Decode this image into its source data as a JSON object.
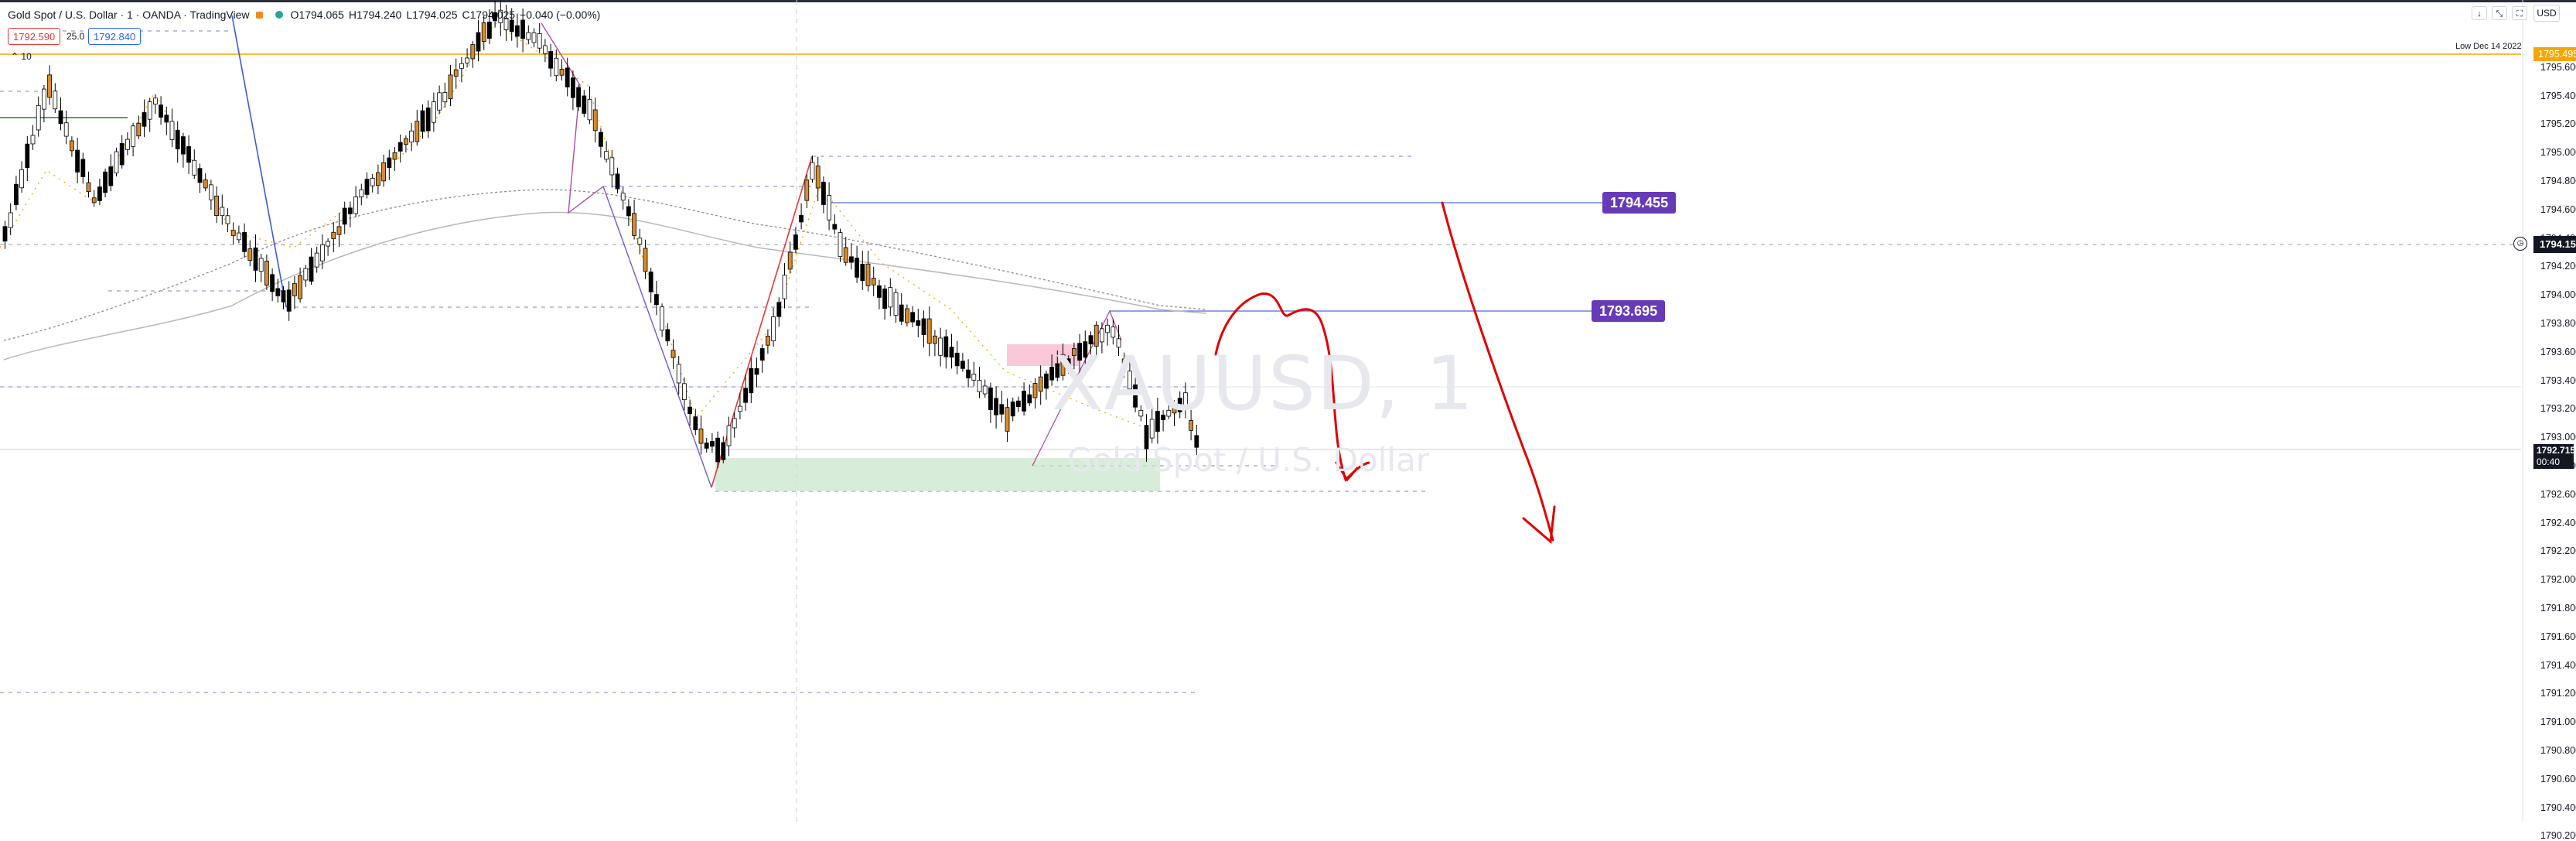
{
  "legend": {
    "symbol": "Gold Spot / U.S. Dollar · 1 · OANDA · TradingView",
    "open": "O1794.065",
    "high": "H1794.240",
    "low": "L1794.025",
    "close": "C1794.025",
    "change": "−0.040 (−0.00%)",
    "market_status_color": "#26a69a",
    "sell_price": "1792.590",
    "spread": "25.0",
    "buy_price": "1792.840",
    "volume_label": "10"
  },
  "axis": {
    "currency_button": "USD",
    "ticks": [
      "1795.600",
      "1795.400",
      "1795.200",
      "1795.000",
      "1794.800",
      "1794.600",
      "1794.400",
      "1794.200",
      "1794.000",
      "1793.800",
      "1793.600",
      "1793.400",
      "1793.200",
      "1793.000",
      "1792.800",
      "1792.600",
      "1792.400",
      "1792.200",
      "1792.000",
      "1791.800",
      "1791.600",
      "1791.400",
      "1791.200",
      "1791.000",
      "1790.800",
      "1790.600",
      "1790.400",
      "1790.200"
    ],
    "current_price": "1794.151",
    "last_price": "1792.715",
    "countdown": "00:40",
    "low_marker": "1795.495",
    "low_marker_label": "Low Dec 14 2022"
  },
  "annotations": {
    "level_top": "1794.455",
    "level_mid": "1793.695"
  },
  "watermark": {
    "ticker": "XAUUSD, 1",
    "name": "Gold Spot / U.S. Dollar"
  },
  "colors": {
    "bull": "#000000",
    "bear": "#d98c2b",
    "accent_purple": "#673ab7",
    "drawing_red": "#e00000",
    "level_orange": "#f7a600"
  }
}
